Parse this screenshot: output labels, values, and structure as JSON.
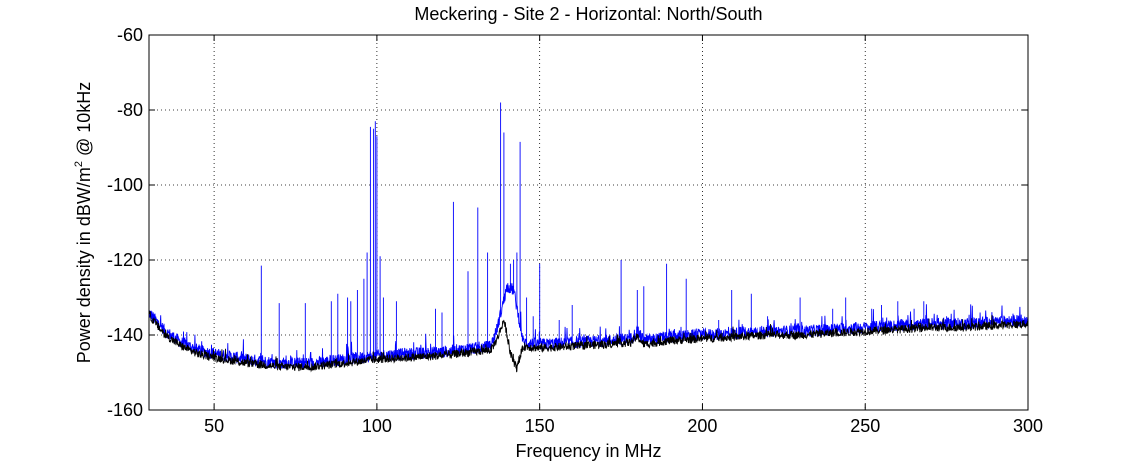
{
  "chart_data": {
    "type": "line",
    "title": "Meckering - Site 2 - Horizontal: North/South",
    "xlabel": "Frequency in MHz",
    "ylabel": {
      "prefix": "Power density in dBW/m",
      "superscript": "2",
      "suffix": " @ 10kHz"
    },
    "xlim": [
      30,
      300
    ],
    "ylim": [
      -160,
      -60
    ],
    "xticks": [
      50,
      100,
      150,
      200,
      250,
      300
    ],
    "yticks": [
      -160,
      -140,
      -120,
      -100,
      -80,
      -60
    ],
    "grid": true,
    "legend": "none",
    "series": [
      {
        "color": "#0000ff",
        "baseline_x": [
          30,
          32,
          35,
          40,
          45,
          50,
          60,
          70,
          80,
          90,
          100,
          110,
          120,
          130,
          135,
          137,
          140,
          142,
          145,
          150,
          160,
          170,
          178,
          180,
          182,
          190,
          200,
          210,
          220,
          230,
          240,
          250,
          260,
          270,
          280,
          290,
          300
        ],
        "baseline_y": [
          -134,
          -136,
          -139,
          -142,
          -144,
          -145,
          -146.5,
          -147.5,
          -147.5,
          -146.5,
          -145.5,
          -145,
          -144.5,
          -143.5,
          -143,
          -138,
          -127,
          -128,
          -142,
          -142.5,
          -142,
          -141.5,
          -141,
          -139,
          -141.5,
          -140.5,
          -140,
          -139.5,
          -139,
          -139,
          -138.5,
          -138,
          -137.5,
          -137,
          -137,
          -136.5,
          -136
        ],
        "spikes": [
          [
            64.5,
            -121.5
          ],
          [
            70,
            -131.5
          ],
          [
            78,
            -131.5
          ],
          [
            86,
            -131
          ],
          [
            88,
            -129
          ],
          [
            91,
            -130
          ],
          [
            92,
            -131
          ],
          [
            94,
            -128
          ],
          [
            96,
            -125
          ],
          [
            97,
            -118
          ],
          [
            98,
            -84.5
          ],
          [
            99,
            -85
          ],
          [
            99.5,
            -83
          ],
          [
            100,
            -87
          ],
          [
            101,
            -119
          ],
          [
            102,
            -130
          ],
          [
            106,
            -131
          ],
          [
            118,
            -133
          ],
          [
            120,
            -134
          ],
          [
            123.5,
            -104.5
          ],
          [
            128,
            -123
          ],
          [
            131,
            -106
          ],
          [
            134,
            -118
          ],
          [
            138,
            -78
          ],
          [
            139,
            -86
          ],
          [
            141,
            -121
          ],
          [
            142,
            -120
          ],
          [
            143,
            -118
          ],
          [
            144,
            -88.5
          ],
          [
            146,
            -130
          ],
          [
            148,
            -135
          ],
          [
            150,
            -121
          ],
          [
            156,
            -136
          ],
          [
            160,
            -132
          ],
          [
            175,
            -120
          ],
          [
            180,
            -128
          ],
          [
            182,
            -127
          ],
          [
            189,
            -121
          ],
          [
            195,
            -125
          ],
          [
            205,
            -136
          ],
          [
            209,
            -128
          ],
          [
            215,
            -129
          ],
          [
            220,
            -135
          ],
          [
            230,
            -130
          ],
          [
            240,
            -133
          ],
          [
            244,
            -130
          ],
          [
            252,
            -133
          ],
          [
            255,
            -132
          ],
          [
            260,
            -131
          ],
          [
            265,
            -133
          ],
          [
            268,
            -131
          ],
          [
            275,
            -135
          ],
          [
            285,
            -136
          ],
          [
            295,
            -135
          ]
        ]
      },
      {
        "color": "#000000",
        "baseline_x": [
          30,
          32,
          35,
          40,
          45,
          50,
          60,
          70,
          80,
          90,
          100,
          110,
          120,
          130,
          135,
          137,
          139,
          140,
          141,
          143,
          145,
          150,
          160,
          170,
          178,
          180,
          182,
          190,
          200,
          210,
          220,
          230,
          240,
          250,
          260,
          270,
          280,
          290,
          300
        ],
        "baseline_y": [
          -134.5,
          -137,
          -140,
          -143,
          -145,
          -146,
          -147.5,
          -148.5,
          -148.5,
          -147.5,
          -146.5,
          -146,
          -145.5,
          -144.5,
          -144,
          -141,
          -136,
          -140,
          -145,
          -149,
          -143,
          -143.5,
          -143,
          -142.5,
          -142,
          -140.5,
          -142.5,
          -141.5,
          -141,
          -140.5,
          -140,
          -140,
          -139.5,
          -139,
          -138.5,
          -138,
          -138,
          -137.5,
          -137
        ]
      }
    ]
  }
}
